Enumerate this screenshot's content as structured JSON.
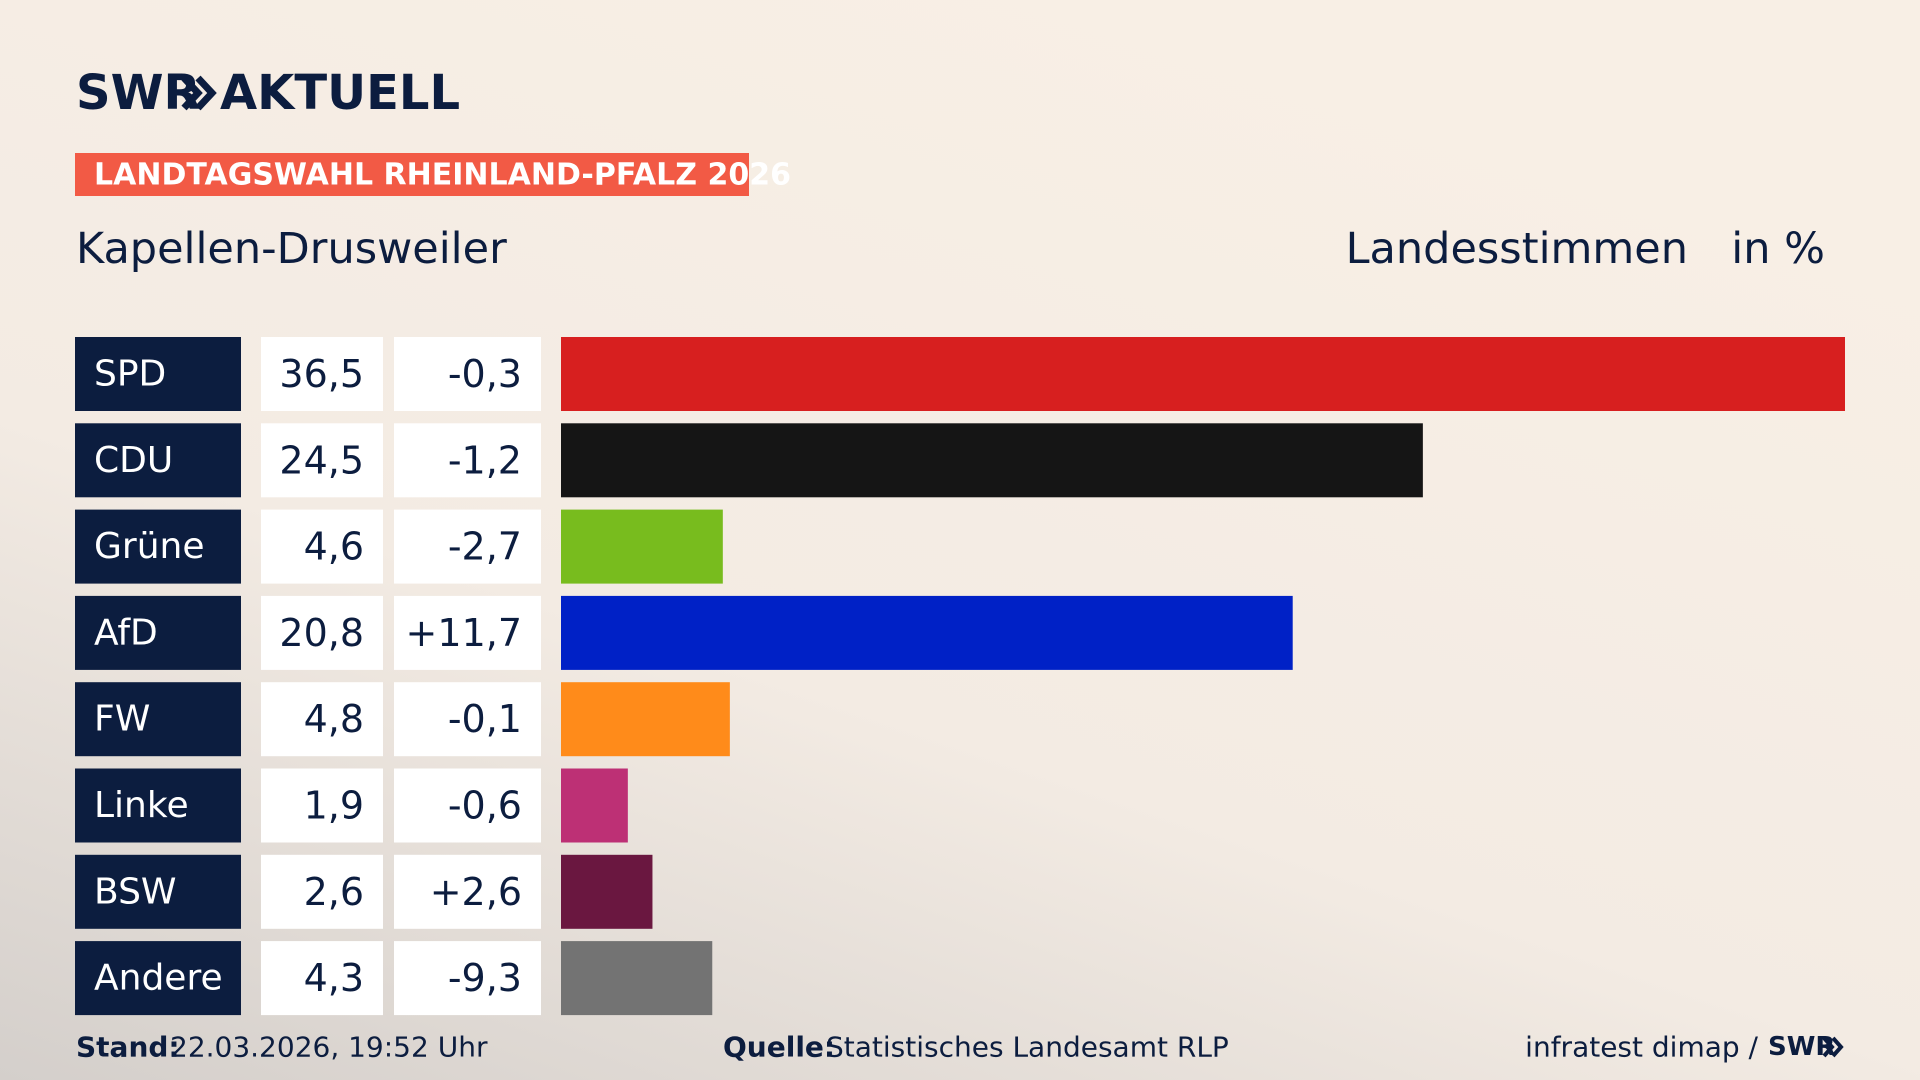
{
  "logo": {
    "brand": "SWR",
    "name": "AKTUELL"
  },
  "chart_data": {
    "type": "bar",
    "tag": "LANDTAGSWAHL RHEINLAND-PFALZ 2026",
    "title": "Kapellen-Drusweiler",
    "measure": "Landesstimmen",
    "unit": "in %",
    "categories": [
      "SPD",
      "CDU",
      "Grüne",
      "AfD",
      "FW",
      "Linke",
      "BSW",
      "Andere"
    ],
    "values": [
      36.5,
      24.5,
      4.6,
      20.8,
      4.8,
      1.9,
      2.6,
      4.3
    ],
    "value_labels": [
      "36,5",
      "24,5",
      "4,6",
      "20,8",
      "4,8",
      "1,9",
      "2,6",
      "4,3"
    ],
    "change_values": [
      -0.3,
      -1.2,
      -2.7,
      11.7,
      -0.1,
      -0.6,
      2.6,
      -9.3
    ],
    "change_labels": [
      "-0,3",
      "-1,2",
      "-2,7",
      "+11,7",
      "-0,1",
      "-0,6",
      "+2,6",
      "-9,3"
    ],
    "colors": [
      "#d71f1f",
      "#151515",
      "#78bc1e",
      "#0021c6",
      "#ff8b1a",
      "#bd3075",
      "#6a1740",
      "#737373"
    ]
  },
  "footer": {
    "stand_label": "Stand:",
    "stand": "22.03.2026, 19:52 Uhr",
    "source_label": "Quelle:",
    "source": "Statistisches Landesamt RLP",
    "credit": "infratest dimap /",
    "credit_brand": "SWR"
  }
}
